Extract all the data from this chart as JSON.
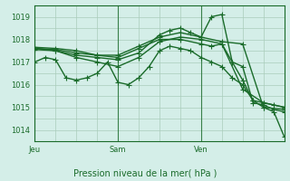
{
  "bg_color": "#d4eee8",
  "grid_color": "#aaccbb",
  "line_color": "#1a6b2a",
  "xlabel": "Pression niveau de la mer( hPa )",
  "ylim": [
    1013.5,
    1019.5
  ],
  "yticks": [
    1014,
    1015,
    1016,
    1017,
    1018,
    1019
  ],
  "xlim": [
    0,
    72
  ],
  "day_labels": [
    [
      0,
      "Jeu"
    ],
    [
      24,
      "Sam"
    ],
    [
      48,
      "Ven"
    ]
  ],
  "series": [
    [
      0,
      1017.0,
      3,
      1017.2,
      6,
      1017.1,
      9,
      1016.3,
      12,
      1016.2,
      15,
      1016.3,
      18,
      1016.5,
      21,
      1017.0,
      24,
      1016.1,
      27,
      1016.0,
      30,
      1016.3,
      33,
      1016.8,
      36,
      1017.5,
      39,
      1017.7,
      42,
      1017.6,
      45,
      1017.5,
      48,
      1017.2,
      51,
      1017.0,
      54,
      1016.8,
      57,
      1016.3,
      60,
      1016.0,
      63,
      1015.3,
      66,
      1015.0,
      69,
      1014.8,
      72,
      1013.7
    ],
    [
      0,
      1017.55,
      6,
      1017.5,
      12,
      1017.2,
      18,
      1017.0,
      24,
      1016.8,
      30,
      1017.2,
      36,
      1017.9,
      42,
      1018.1,
      48,
      1018.0,
      54,
      1017.8,
      60,
      1015.8,
      66,
      1015.2,
      72,
      1015.0
    ],
    [
      0,
      1017.6,
      6,
      1017.5,
      12,
      1017.3,
      18,
      1017.2,
      24,
      1017.1,
      30,
      1017.4,
      36,
      1018.2,
      39,
      1018.4,
      42,
      1018.5,
      45,
      1018.3,
      48,
      1018.1,
      51,
      1019.0,
      54,
      1019.1,
      57,
      1017.0,
      60,
      1016.8,
      63,
      1015.2,
      66,
      1015.1,
      69,
      1014.9,
      72,
      1014.8
    ],
    [
      0,
      1017.6,
      6,
      1017.55,
      12,
      1017.4,
      18,
      1017.3,
      24,
      1017.2,
      30,
      1017.6,
      36,
      1018.0,
      42,
      1018.0,
      48,
      1017.8,
      51,
      1017.7,
      54,
      1017.8,
      57,
      1017.0,
      60,
      1016.2,
      63,
      1015.3,
      66,
      1015.2,
      69,
      1015.1,
      72,
      1015.0
    ],
    [
      0,
      1017.65,
      6,
      1017.6,
      12,
      1017.5,
      18,
      1017.3,
      24,
      1017.3,
      30,
      1017.7,
      36,
      1018.1,
      42,
      1018.3,
      48,
      1018.1,
      54,
      1017.9,
      60,
      1017.8,
      66,
      1015.0,
      72,
      1014.9
    ]
  ],
  "marker": "+",
  "marker_size": 4,
  "line_width": 1.0
}
